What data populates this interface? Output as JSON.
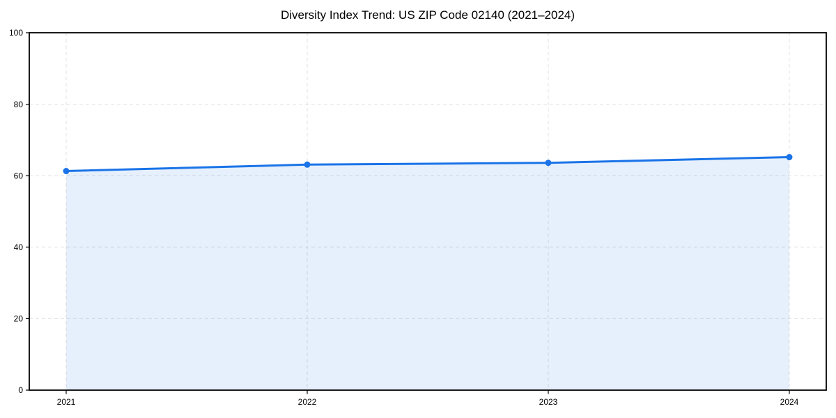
{
  "chart_data": {
    "type": "area",
    "title": "Diversity Index Trend: US ZIP Code 02140 (2021–2024)",
    "categories": [
      "2021",
      "2022",
      "2023",
      "2024"
    ],
    "series": [
      {
        "name": "Diversity Index",
        "values": [
          61.3,
          63.1,
          63.6,
          65.2
        ]
      }
    ],
    "xlabel": "",
    "ylabel": "",
    "ylim": [
      0,
      100
    ],
    "yticks": [
      0,
      20,
      40,
      60,
      80,
      100
    ],
    "grid": "dashed-both-axes",
    "legend_position": "none",
    "colors": {
      "line": "#1a73e8",
      "marker": "#1a73e8",
      "area_fill": "rgba(26,115,232,0.11)",
      "gridline": "#e0e0e0",
      "axis": "#000000",
      "background": "#ffffff"
    }
  }
}
